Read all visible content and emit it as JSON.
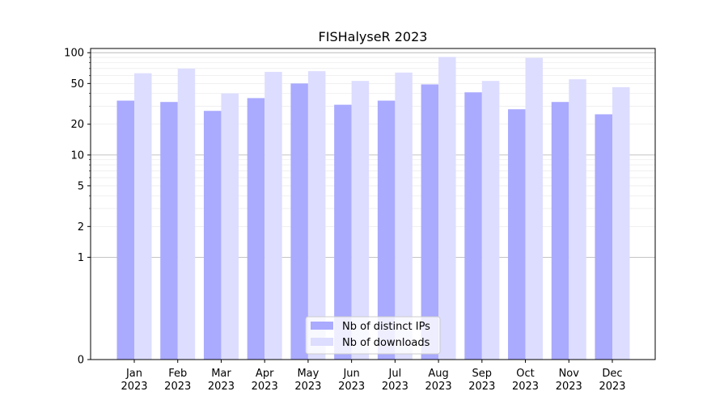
{
  "chart_data": {
    "type": "bar",
    "title": "FISHalyseR 2023",
    "xlabel": "",
    "ylabel": "",
    "yscale": "symlog",
    "ylim": [
      0,
      110
    ],
    "yticks": [
      0,
      1,
      2,
      5,
      10,
      20,
      50,
      100
    ],
    "categories": [
      [
        "Jan",
        "2023"
      ],
      [
        "Feb",
        "2023"
      ],
      [
        "Mar",
        "2023"
      ],
      [
        "Apr",
        "2023"
      ],
      [
        "May",
        "2023"
      ],
      [
        "Jun",
        "2023"
      ],
      [
        "Jul",
        "2023"
      ],
      [
        "Aug",
        "2023"
      ],
      [
        "Sep",
        "2023"
      ],
      [
        "Oct",
        "2023"
      ],
      [
        "Nov",
        "2023"
      ],
      [
        "Dec",
        "2023"
      ]
    ],
    "series": [
      {
        "name": "Nb of distinct IPs",
        "color": "#aaaaff",
        "values": [
          34,
          33,
          27,
          36,
          50,
          31,
          34,
          49,
          41,
          28,
          33,
          25
        ]
      },
      {
        "name": "Nb of downloads",
        "color": "#ddddff",
        "values": [
          63,
          70,
          40,
          65,
          66,
          53,
          64,
          91,
          53,
          89,
          55,
          46
        ]
      }
    ],
    "grid": true,
    "legend_position": "bottom-center"
  }
}
